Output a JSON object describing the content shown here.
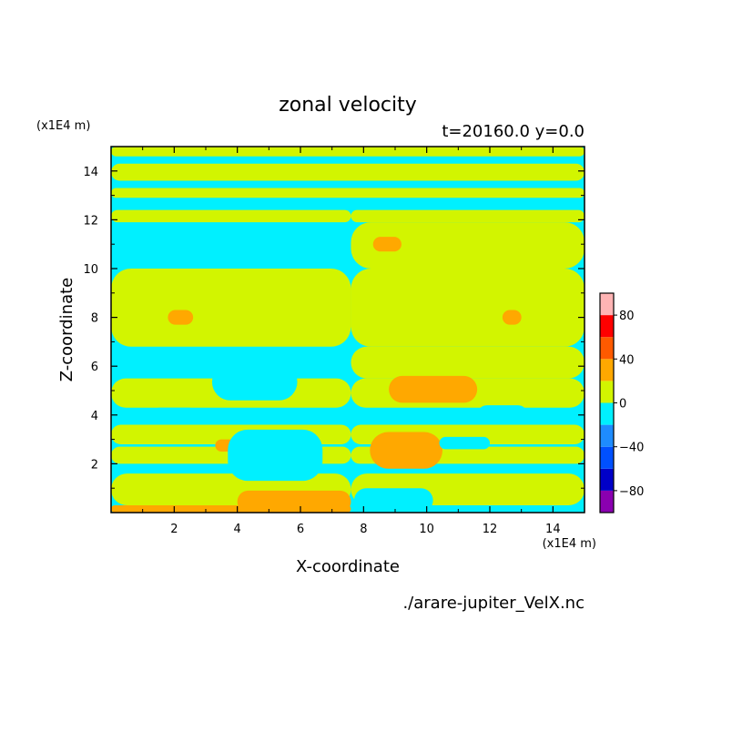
{
  "chart_data": {
    "type": "heatmap",
    "title": "zonal velocity",
    "subtitle": "t=20160.0 y=0.0",
    "xlabel": "X-coordinate",
    "ylabel": "Z-coordinate",
    "x_unit": "(x1E4 m)",
    "y_unit": "(x1E4 m)",
    "xlim": [
      0,
      15
    ],
    "ylim": [
      0,
      15
    ],
    "x_ticks": [
      "2",
      "4",
      "6",
      "8",
      "10",
      "12",
      "14"
    ],
    "y_ticks": [
      "2",
      "4",
      "6",
      "8",
      "10",
      "12",
      "14"
    ],
    "grid": false,
    "file_label": "./arare-jupiter_VelX.nc",
    "colorbar": {
      "levels": [
        -100,
        -80,
        -60,
        -40,
        -20,
        0,
        20,
        40,
        60,
        80,
        100
      ],
      "tick_labels": [
        "-80",
        "-40",
        "0",
        "40",
        "80"
      ],
      "colors": [
        "#8a00b0",
        "#0000c8",
        "#0050ff",
        "#1e8cff",
        "#00f0ff",
        "#d2f500",
        "#ffa800",
        "#ff5a00",
        "#ff0000",
        "#ffb4b4"
      ]
    },
    "background_color": "#00f0ff",
    "regions": [
      {
        "level": 1,
        "x": [
          0,
          7.6
        ],
        "z": [
          0.3,
          1.6
        ]
      },
      {
        "level": 1,
        "x": [
          0,
          7.6
        ],
        "z": [
          2.0,
          2.7
        ]
      },
      {
        "level": 1,
        "x": [
          0,
          7.6
        ],
        "z": [
          2.8,
          3.6
        ]
      },
      {
        "level": 1,
        "x": [
          0,
          7.6
        ],
        "z": [
          4.3,
          5.5
        ]
      },
      {
        "level": 1,
        "x": [
          0,
          7.6
        ],
        "z": [
          6.8,
          10.0
        ]
      },
      {
        "level": 1,
        "x": [
          0,
          7.6
        ],
        "z": [
          11.9,
          12.4
        ]
      },
      {
        "level": 1,
        "x": [
          0,
          15
        ],
        "z": [
          12.9,
          13.3
        ]
      },
      {
        "level": 1,
        "x": [
          0,
          15
        ],
        "z": [
          13.6,
          14.3
        ]
      },
      {
        "level": 1,
        "x": [
          0,
          15
        ],
        "z": [
          14.6,
          15.0
        ]
      },
      {
        "level": 1,
        "x": [
          7.6,
          15
        ],
        "z": [
          0.3,
          1.6
        ]
      },
      {
        "level": 1,
        "x": [
          7.6,
          15
        ],
        "z": [
          2.0,
          2.7
        ]
      },
      {
        "level": 1,
        "x": [
          7.6,
          15
        ],
        "z": [
          2.8,
          3.6
        ]
      },
      {
        "level": 1,
        "x": [
          7.6,
          15
        ],
        "z": [
          4.3,
          5.5
        ]
      },
      {
        "level": 1,
        "x": [
          7.6,
          15
        ],
        "z": [
          6.8,
          10.0
        ]
      },
      {
        "level": 1,
        "x": [
          7.6,
          15
        ],
        "z": [
          11.9,
          12.4
        ]
      },
      {
        "level": 1,
        "x": [
          7.6,
          15
        ],
        "z": [
          5.5,
          6.8
        ]
      },
      {
        "level": 1,
        "x": [
          7.6,
          15
        ],
        "z": [
          10.0,
          11.9
        ]
      },
      {
        "level": 2,
        "x": [
          0,
          7.6
        ],
        "z": [
          0,
          0.3
        ]
      },
      {
        "level": 2,
        "x": [
          4.0,
          7.6
        ],
        "z": [
          0,
          0.9
        ]
      },
      {
        "level": 2,
        "x": [
          3.3,
          4.3
        ],
        "z": [
          2.5,
          3.0
        ]
      },
      {
        "level": 2,
        "x": [
          1.8,
          2.6
        ],
        "z": [
          7.7,
          8.3
        ]
      },
      {
        "level": 2,
        "x": [
          8.2,
          10.5
        ],
        "z": [
          1.8,
          3.3
        ]
      },
      {
        "level": 2,
        "x": [
          8.8,
          11.6
        ],
        "z": [
          4.5,
          5.6
        ]
      },
      {
        "level": 2,
        "x": [
          8.3,
          9.2
        ],
        "z": [
          10.7,
          11.3
        ]
      },
      {
        "level": 2,
        "x": [
          12.4,
          13.0
        ],
        "z": [
          7.7,
          8.3
        ]
      },
      {
        "level": -1,
        "x": [
          3.2,
          5.9
        ],
        "z": [
          4.6,
          6.1
        ]
      },
      {
        "level": -1,
        "x": [
          3.7,
          6.7
        ],
        "z": [
          1.3,
          3.4
        ]
      },
      {
        "level": -1,
        "x": [
          1.3,
          2.7
        ],
        "z": [
          3.7,
          4.3
        ]
      },
      {
        "level": -1,
        "x": [
          5.9,
          6.9
        ],
        "z": [
          10.9,
          11.5
        ]
      },
      {
        "level": -1,
        "x": [
          7.7,
          10.2
        ],
        "z": [
          0,
          1.0
        ]
      },
      {
        "level": -1,
        "x": [
          10.4,
          12.0
        ],
        "z": [
          2.6,
          3.1
        ]
      },
      {
        "level": -1,
        "x": [
          11.6,
          13.2
        ],
        "z": [
          3.6,
          4.4
        ]
      }
    ]
  }
}
